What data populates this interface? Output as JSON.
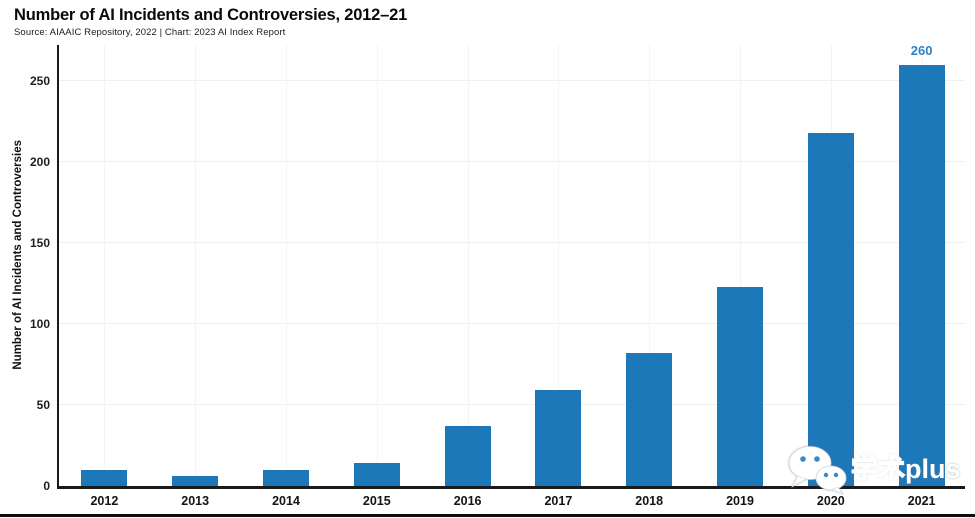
{
  "chart_data": {
    "type": "bar",
    "title": "Number of AI Incidents and Controversies, 2012–21",
    "subtitle": "Source: AIAAIC Repository, 2022 | Chart: 2023 AI Index Report",
    "ylabel": "Number of AI Incidents and Controversies",
    "xlabel": "",
    "categories": [
      "2012",
      "2013",
      "2014",
      "2015",
      "2016",
      "2017",
      "2018",
      "2019",
      "2020",
      "2021"
    ],
    "values": [
      10,
      6,
      10,
      14,
      37,
      59,
      82,
      123,
      218,
      260
    ],
    "yticks": [
      0,
      50,
      100,
      150,
      200,
      250
    ],
    "ylim": [
      0,
      274
    ],
    "grid": true,
    "legend_position": "none",
    "bar_color": "#1d78ba",
    "axis_color": "#1a1a1a",
    "grid_color": "#f0f0f0",
    "annotations": [
      {
        "category": "2021",
        "label": "260",
        "color": "#2e82c5"
      }
    ]
  },
  "watermark": {
    "icon": "wechat-icon",
    "text_cn": "学术",
    "text_en": "plus",
    "eye_color": "#3e86c2"
  }
}
